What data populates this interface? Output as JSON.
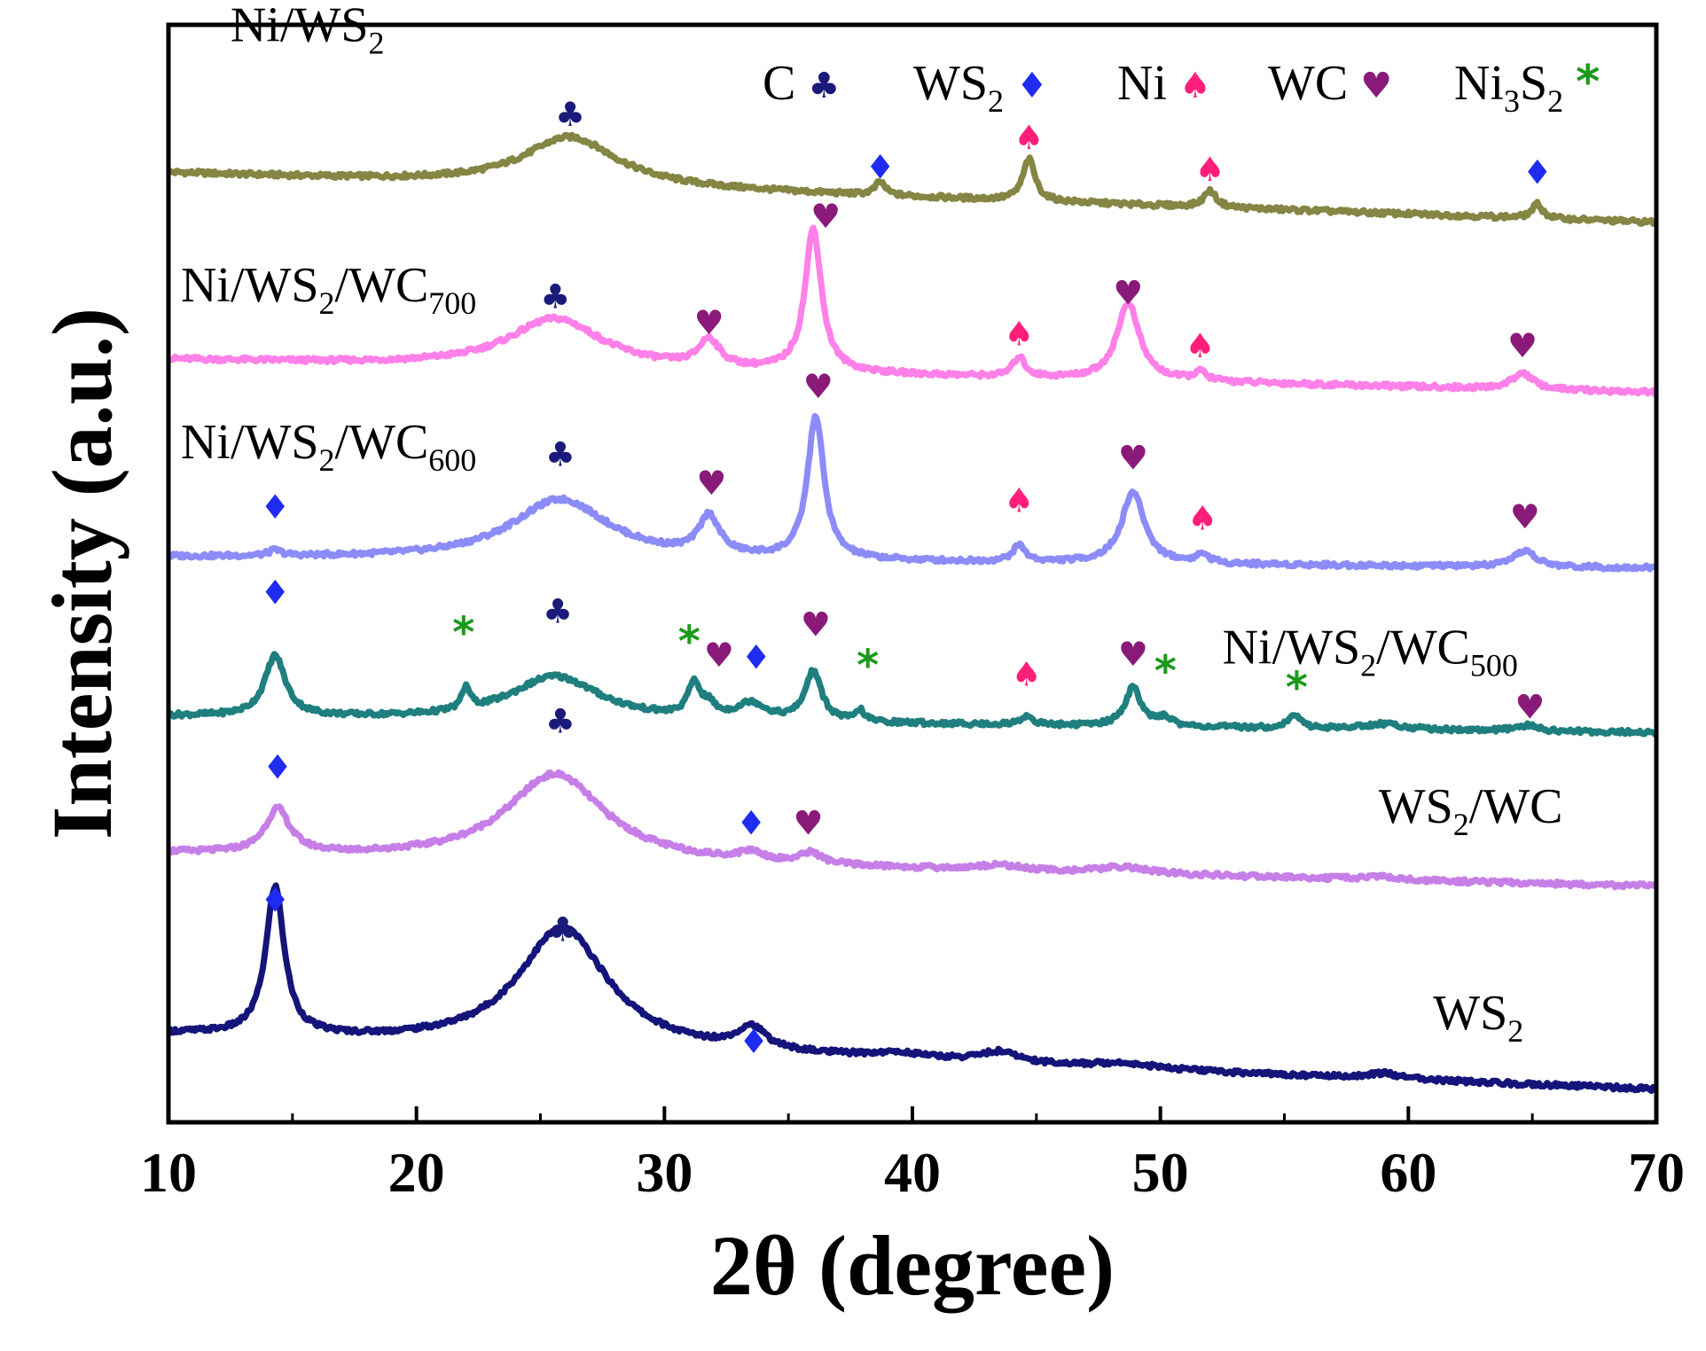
{
  "chart_data": {
    "type": "line",
    "xlabel": "2θ (degree)",
    "ylabel": "Intensity (a.u.)",
    "xlim": [
      10,
      70
    ],
    "xticks": [
      10,
      20,
      30,
      40,
      50,
      60,
      70
    ],
    "grid": false,
    "legend_placement": "top-right",
    "marker_types": {
      "C": {
        "symbol": "♣",
        "color": "#1a1a7a"
      },
      "WS2": {
        "symbol": "♦",
        "color": "#1f2cf0"
      },
      "Ni": {
        "symbol": "♠",
        "color": "#ff1f7a"
      },
      "WC": {
        "symbol": "♥",
        "color": "#8a1a7a"
      },
      "Ni3S2": {
        "symbol": "*",
        "color": "#1a9a1a"
      }
    },
    "legend": [
      {
        "key": "C",
        "text": "C",
        "sub": "",
        "after": ""
      },
      {
        "key": "WS2",
        "text": "WS",
        "sub": "2",
        "after": ""
      },
      {
        "key": "Ni",
        "text": "Ni",
        "sub": "",
        "after": ""
      },
      {
        "key": "WC",
        "text": "WC",
        "sub": "",
        "after": ""
      },
      {
        "key": "Ni3S2",
        "text": "Ni",
        "sub": "3",
        "after": "S",
        "sub2": "2"
      }
    ],
    "series": [
      {
        "name": "Ni/WS2",
        "label": {
          "text": "Ni/WS",
          "sub": "2",
          "after": "",
          "x": 12.5,
          "y": 0.985
        },
        "color": "#858544",
        "offset": 0.82,
        "start": 0.045,
        "end": 0.0,
        "peaks": [
          [
            26.2,
            0.045,
            2.3
          ],
          [
            38.7,
            0.012,
            0.25
          ],
          [
            44.7,
            0.038,
            0.3
          ],
          [
            52.0,
            0.015,
            0.3
          ],
          [
            65.2,
            0.013,
            0.25
          ]
        ],
        "markers": [
          {
            "type": "C",
            "x": 26.2,
            "y": 0.908
          },
          {
            "type": "WS2",
            "x": 38.7,
            "y": 0.86
          },
          {
            "type": "Ni",
            "x": 44.7,
            "y": 0.887
          },
          {
            "type": "Ni",
            "x": 52.0,
            "y": 0.858
          },
          {
            "type": "WS2",
            "x": 65.2,
            "y": 0.855
          }
        ]
      },
      {
        "name": "Ni/WS2/WC700",
        "label": {
          "text": "Ni/WS",
          "sub": "2",
          "after": "/WC",
          "sub2": "700",
          "x": 10.5,
          "y": 0.748
        },
        "color": "#ff80e8",
        "offset": 0.665,
        "start": 0.03,
        "end": 0.0,
        "peaks": [
          [
            25.6,
            0.045,
            2.3
          ],
          [
            31.8,
            0.025,
            0.5
          ],
          [
            36.0,
            0.13,
            0.4
          ],
          [
            44.3,
            0.018,
            0.3
          ],
          [
            48.7,
            0.07,
            0.55
          ],
          [
            51.6,
            0.008,
            0.3
          ],
          [
            64.6,
            0.015,
            0.5
          ]
        ],
        "markers": [
          {
            "type": "C",
            "x": 25.6,
            "y": 0.742
          },
          {
            "type": "WC",
            "x": 36.5,
            "y": 0.815
          },
          {
            "type": "WC",
            "x": 31.8,
            "y": 0.718
          },
          {
            "type": "Ni",
            "x": 44.3,
            "y": 0.708
          },
          {
            "type": "WC",
            "x": 48.7,
            "y": 0.745
          },
          {
            "type": "Ni",
            "x": 51.6,
            "y": 0.697
          },
          {
            "type": "WC",
            "x": 64.6,
            "y": 0.697
          }
        ]
      },
      {
        "name": "Ni/WS2/WC600",
        "label": {
          "text": "Ni/WS",
          "sub": "2",
          "after": "/WC",
          "sub2": "600",
          "x": 10.5,
          "y": 0.605
        },
        "color": "#8c8cf8",
        "offset": 0.505,
        "start": 0.01,
        "end": 0.0,
        "peaks": [
          [
            14.3,
            0.005,
            0.3
          ],
          [
            25.8,
            0.055,
            2.4
          ],
          [
            31.8,
            0.035,
            0.5
          ],
          [
            36.1,
            0.13,
            0.4
          ],
          [
            44.3,
            0.015,
            0.3
          ],
          [
            48.9,
            0.065,
            0.55
          ],
          [
            51.7,
            0.008,
            0.3
          ],
          [
            64.7,
            0.015,
            0.5
          ]
        ],
        "markers": [
          {
            "type": "WS2",
            "x": 14.3,
            "y": 0.55
          },
          {
            "type": "C",
            "x": 25.8,
            "y": 0.598
          },
          {
            "type": "WC",
            "x": 36.2,
            "y": 0.66
          },
          {
            "type": "WC",
            "x": 31.9,
            "y": 0.572
          },
          {
            "type": "Ni",
            "x": 44.3,
            "y": 0.556
          },
          {
            "type": "WC",
            "x": 48.9,
            "y": 0.595
          },
          {
            "type": "Ni",
            "x": 51.7,
            "y": 0.54
          },
          {
            "type": "WC",
            "x": 64.7,
            "y": 0.541
          }
        ]
      },
      {
        "name": "Ni/WS2/WC500",
        "label": {
          "text": "Ni/WS",
          "sub": "2",
          "after": "/WC",
          "sub2": "500",
          "x": 52.5,
          "y": 0.418
        },
        "color": "#1f7f7f",
        "offset": 0.36,
        "start": 0.01,
        "end": -0.005,
        "peaks": [
          [
            14.3,
            0.055,
            0.5
          ],
          [
            22.0,
            0.02,
            0.2
          ],
          [
            25.6,
            0.04,
            2.2
          ],
          [
            31.2,
            0.03,
            0.3
          ],
          [
            31.8,
            0.01,
            0.3
          ],
          [
            33.5,
            0.015,
            0.7
          ],
          [
            36.0,
            0.045,
            0.4
          ],
          [
            37.9,
            0.01,
            0.2
          ],
          [
            44.6,
            0.008,
            0.3
          ],
          [
            48.9,
            0.035,
            0.4
          ],
          [
            50.2,
            0.008,
            0.3
          ],
          [
            55.4,
            0.012,
            0.3
          ],
          [
            59.0,
            0.005,
            1.0
          ],
          [
            64.8,
            0.005,
            0.5
          ]
        ],
        "markers": [
          {
            "type": "WS2",
            "x": 14.3,
            "y": 0.472
          },
          {
            "type": "Ni3S2",
            "x": 21.9,
            "y": 0.433
          },
          {
            "type": "C",
            "x": 25.7,
            "y": 0.455
          },
          {
            "type": "Ni3S2",
            "x": 31.0,
            "y": 0.425
          },
          {
            "type": "WC",
            "x": 32.2,
            "y": 0.415
          },
          {
            "type": "WS2",
            "x": 33.7,
            "y": 0.413
          },
          {
            "type": "WC",
            "x": 36.1,
            "y": 0.443
          },
          {
            "type": "Ni3S2",
            "x": 38.2,
            "y": 0.403
          },
          {
            "type": "Ni",
            "x": 44.6,
            "y": 0.398
          },
          {
            "type": "WC",
            "x": 48.9,
            "y": 0.416
          },
          {
            "type": "Ni3S2",
            "x": 50.2,
            "y": 0.398
          },
          {
            "type": "Ni3S2",
            "x": 55.5,
            "y": 0.383
          },
          {
            "type": "WC",
            "x": 64.9,
            "y": 0.368
          }
        ]
      },
      {
        "name": "WS2/WC",
        "label": {
          "text": "WS",
          "sub": "2",
          "after": "/WC",
          "x": 58.8,
          "y": 0.273
        },
        "color": "#c77fe8",
        "offset": 0.22,
        "start": 0.025,
        "end": -0.005,
        "peaks": [
          [
            14.4,
            0.04,
            0.6
          ],
          [
            25.6,
            0.08,
            2.4
          ],
          [
            33.5,
            0.008,
            0.6
          ],
          [
            35.9,
            0.01,
            0.5
          ],
          [
            43.5,
            0.005,
            1.0
          ],
          [
            48.5,
            0.006,
            1.2
          ],
          [
            58.8,
            0.003,
            0.8
          ]
        ],
        "markers": [
          {
            "type": "WS2",
            "x": 14.4,
            "y": 0.313
          },
          {
            "type": "C",
            "x": 25.8,
            "y": 0.355
          },
          {
            "type": "WS2",
            "x": 33.5,
            "y": 0.262
          },
          {
            "type": "WC",
            "x": 35.8,
            "y": 0.262
          }
        ]
      },
      {
        "name": "WS2",
        "label": {
          "text": "WS",
          "sub": "2",
          "after": "",
          "x": 61.0,
          "y": 0.085
        },
        "color": "#14147a",
        "offset": 0.03,
        "start": 0.05,
        "end": 0.0,
        "peaks": [
          [
            14.3,
            0.135,
            0.45
          ],
          [
            25.9,
            0.11,
            2.2
          ],
          [
            33.5,
            0.02,
            0.7
          ],
          [
            39.5,
            0.005,
            1.5
          ],
          [
            43.5,
            0.01,
            1.0
          ],
          [
            48.5,
            0.005,
            1.5
          ],
          [
            59.0,
            0.005,
            0.8
          ]
        ],
        "markers": [
          {
            "type": "WS2",
            "x": 14.3,
            "y": 0.192
          },
          {
            "type": "C",
            "x": 25.9,
            "y": 0.165
          },
          {
            "type": "WS2",
            "x": 33.6,
            "y": 0.063
          }
        ]
      }
    ]
  }
}
